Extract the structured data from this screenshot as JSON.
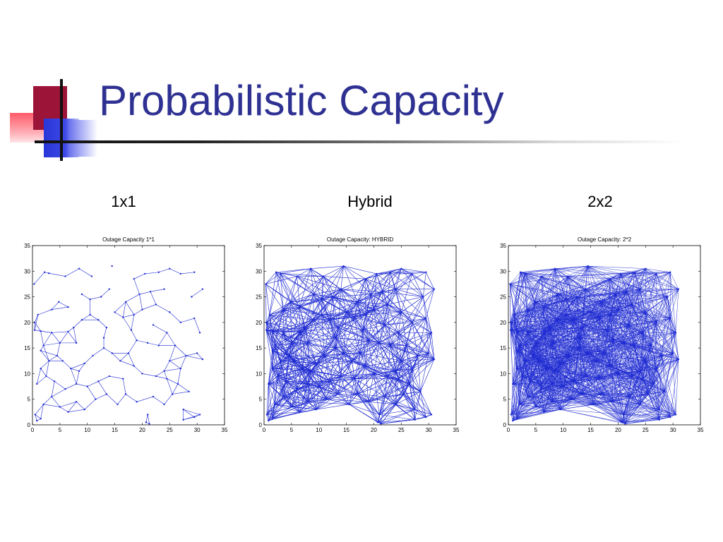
{
  "slide": {
    "title": "Probabilistic Capacity",
    "labels": [
      "1x1",
      "Hybrid",
      "2x2"
    ],
    "accent": "#2e3192",
    "line_color": "#1f2bd1"
  },
  "chart_data": [
    {
      "type": "scatter",
      "title": "Outage Capacity 1*1",
      "xlim": [
        0,
        35
      ],
      "ylim": [
        0,
        35
      ],
      "xticks": [
        0,
        5,
        10,
        15,
        20,
        25,
        30,
        35
      ],
      "yticks": [
        0,
        5,
        10,
        15,
        20,
        25,
        30,
        35
      ],
      "link_mode": "sparse",
      "grid": false
    },
    {
      "type": "scatter",
      "title": "Outage Capacity: HYBRID",
      "xlim": [
        0,
        35
      ],
      "ylim": [
        0,
        35
      ],
      "xticks": [
        0,
        5,
        10,
        15,
        20,
        25,
        30,
        35
      ],
      "yticks": [
        0,
        5,
        10,
        15,
        20,
        25,
        30,
        35
      ],
      "link_mode": "medium",
      "grid": false
    },
    {
      "type": "scatter",
      "title": "Outage Capacity: 2*2",
      "xlim": [
        0,
        35
      ],
      "ylim": [
        0,
        35
      ],
      "xticks": [
        0,
        5,
        10,
        15,
        20,
        25,
        30,
        35
      ],
      "yticks": [
        0,
        5,
        10,
        15,
        20,
        25,
        30,
        35
      ],
      "link_mode": "dense",
      "grid": false
    }
  ],
  "nodes": [
    [
      0.3,
      27.5
    ],
    [
      2.2,
      29.8
    ],
    [
      3.0,
      29.6
    ],
    [
      6.0,
      29.0
    ],
    [
      8.5,
      30.5
    ],
    [
      10.8,
      29.0
    ],
    [
      14.5,
      31.0
    ],
    [
      18.5,
      28.5
    ],
    [
      20.5,
      29.5
    ],
    [
      23.0,
      29.8
    ],
    [
      25.0,
      30.5
    ],
    [
      27.0,
      29.5
    ],
    [
      29.5,
      29.8
    ],
    [
      31.0,
      26.5
    ],
    [
      29.0,
      25.0
    ],
    [
      24.0,
      26.5
    ],
    [
      21.5,
      26.0
    ],
    [
      19.5,
      25.5
    ],
    [
      17.0,
      24.0
    ],
    [
      14.0,
      26.5
    ],
    [
      12.5,
      25.0
    ],
    [
      10.5,
      24.5
    ],
    [
      9.0,
      25.5
    ],
    [
      6.5,
      23.0
    ],
    [
      4.8,
      24.0
    ],
    [
      3.5,
      22.5
    ],
    [
      1.0,
      21.5
    ],
    [
      0.4,
      20.0
    ],
    [
      0.4,
      18.5
    ],
    [
      1.5,
      18.3
    ],
    [
      3.5,
      18.0
    ],
    [
      6.5,
      18.2
    ],
    [
      7.5,
      19.0
    ],
    [
      9.0,
      20.5
    ],
    [
      10.5,
      21.5
    ],
    [
      12.0,
      20.5
    ],
    [
      13.5,
      19.0
    ],
    [
      15.0,
      22.0
    ],
    [
      16.5,
      21.0
    ],
    [
      18.5,
      21.5
    ],
    [
      20.0,
      22.5
    ],
    [
      22.0,
      19.5
    ],
    [
      24.5,
      18.0
    ],
    [
      27.0,
      20.0
    ],
    [
      29.5,
      20.8
    ],
    [
      30.5,
      18.0
    ],
    [
      30.0,
      14.0
    ],
    [
      31.0,
      12.8
    ],
    [
      28.0,
      13.5
    ],
    [
      27.0,
      11.0
    ],
    [
      25.0,
      12.5
    ],
    [
      24.0,
      10.5
    ],
    [
      23.0,
      15.5
    ],
    [
      21.0,
      16.0
    ],
    [
      19.0,
      16.5
    ],
    [
      17.5,
      14.0
    ],
    [
      16.0,
      12.5
    ],
    [
      14.5,
      14.0
    ],
    [
      13.0,
      15.0
    ],
    [
      11.0,
      13.5
    ],
    [
      9.5,
      12.0
    ],
    [
      8.5,
      10.5
    ],
    [
      7.0,
      11.0
    ],
    [
      5.5,
      12.5
    ],
    [
      4.5,
      13.5
    ],
    [
      3.0,
      12.5
    ],
    [
      1.5,
      11.0
    ],
    [
      0.8,
      8.0
    ],
    [
      2.0,
      4.0
    ],
    [
      3.5,
      5.5
    ],
    [
      5.0,
      3.5
    ],
    [
      6.5,
      2.5
    ],
    [
      8.0,
      4.5
    ],
    [
      9.5,
      3.0
    ],
    [
      11.5,
      5.0
    ],
    [
      13.5,
      6.0
    ],
    [
      15.5,
      4.0
    ],
    [
      17.0,
      6.0
    ],
    [
      19.0,
      4.5
    ],
    [
      21.0,
      2.0
    ],
    [
      22.0,
      5.5
    ],
    [
      24.0,
      4.0
    ],
    [
      25.5,
      6.0
    ],
    [
      27.5,
      3.0
    ],
    [
      29.5,
      1.5
    ],
    [
      30.5,
      2.0
    ],
    [
      28.5,
      6.5
    ],
    [
      26.5,
      8.0
    ],
    [
      24.5,
      9.0
    ],
    [
      22.5,
      9.5
    ],
    [
      20.0,
      10.0
    ],
    [
      18.5,
      11.5
    ],
    [
      16.5,
      9.0
    ],
    [
      14.0,
      9.5
    ],
    [
      12.0,
      8.5
    ],
    [
      10.0,
      7.5
    ],
    [
      8.0,
      8.0
    ],
    [
      6.0,
      7.0
    ],
    [
      4.0,
      8.5
    ],
    [
      2.5,
      9.5
    ],
    [
      0.5,
      2.0
    ],
    [
      0.8,
      0.8
    ],
    [
      1.5,
      1.2
    ],
    [
      20.7,
      0.5
    ],
    [
      21.3,
      0.2
    ],
    [
      27.5,
      1.0
    ],
    [
      26.0,
      15.5
    ],
    [
      25.0,
      22.0
    ],
    [
      22.5,
      23.5
    ],
    [
      18.0,
      18.5
    ],
    [
      13.0,
      17.0
    ],
    [
      8.0,
      16.0
    ],
    [
      5.0,
      16.0
    ],
    [
      2.0,
      15.5
    ],
    [
      1.5,
      14.5
    ]
  ]
}
